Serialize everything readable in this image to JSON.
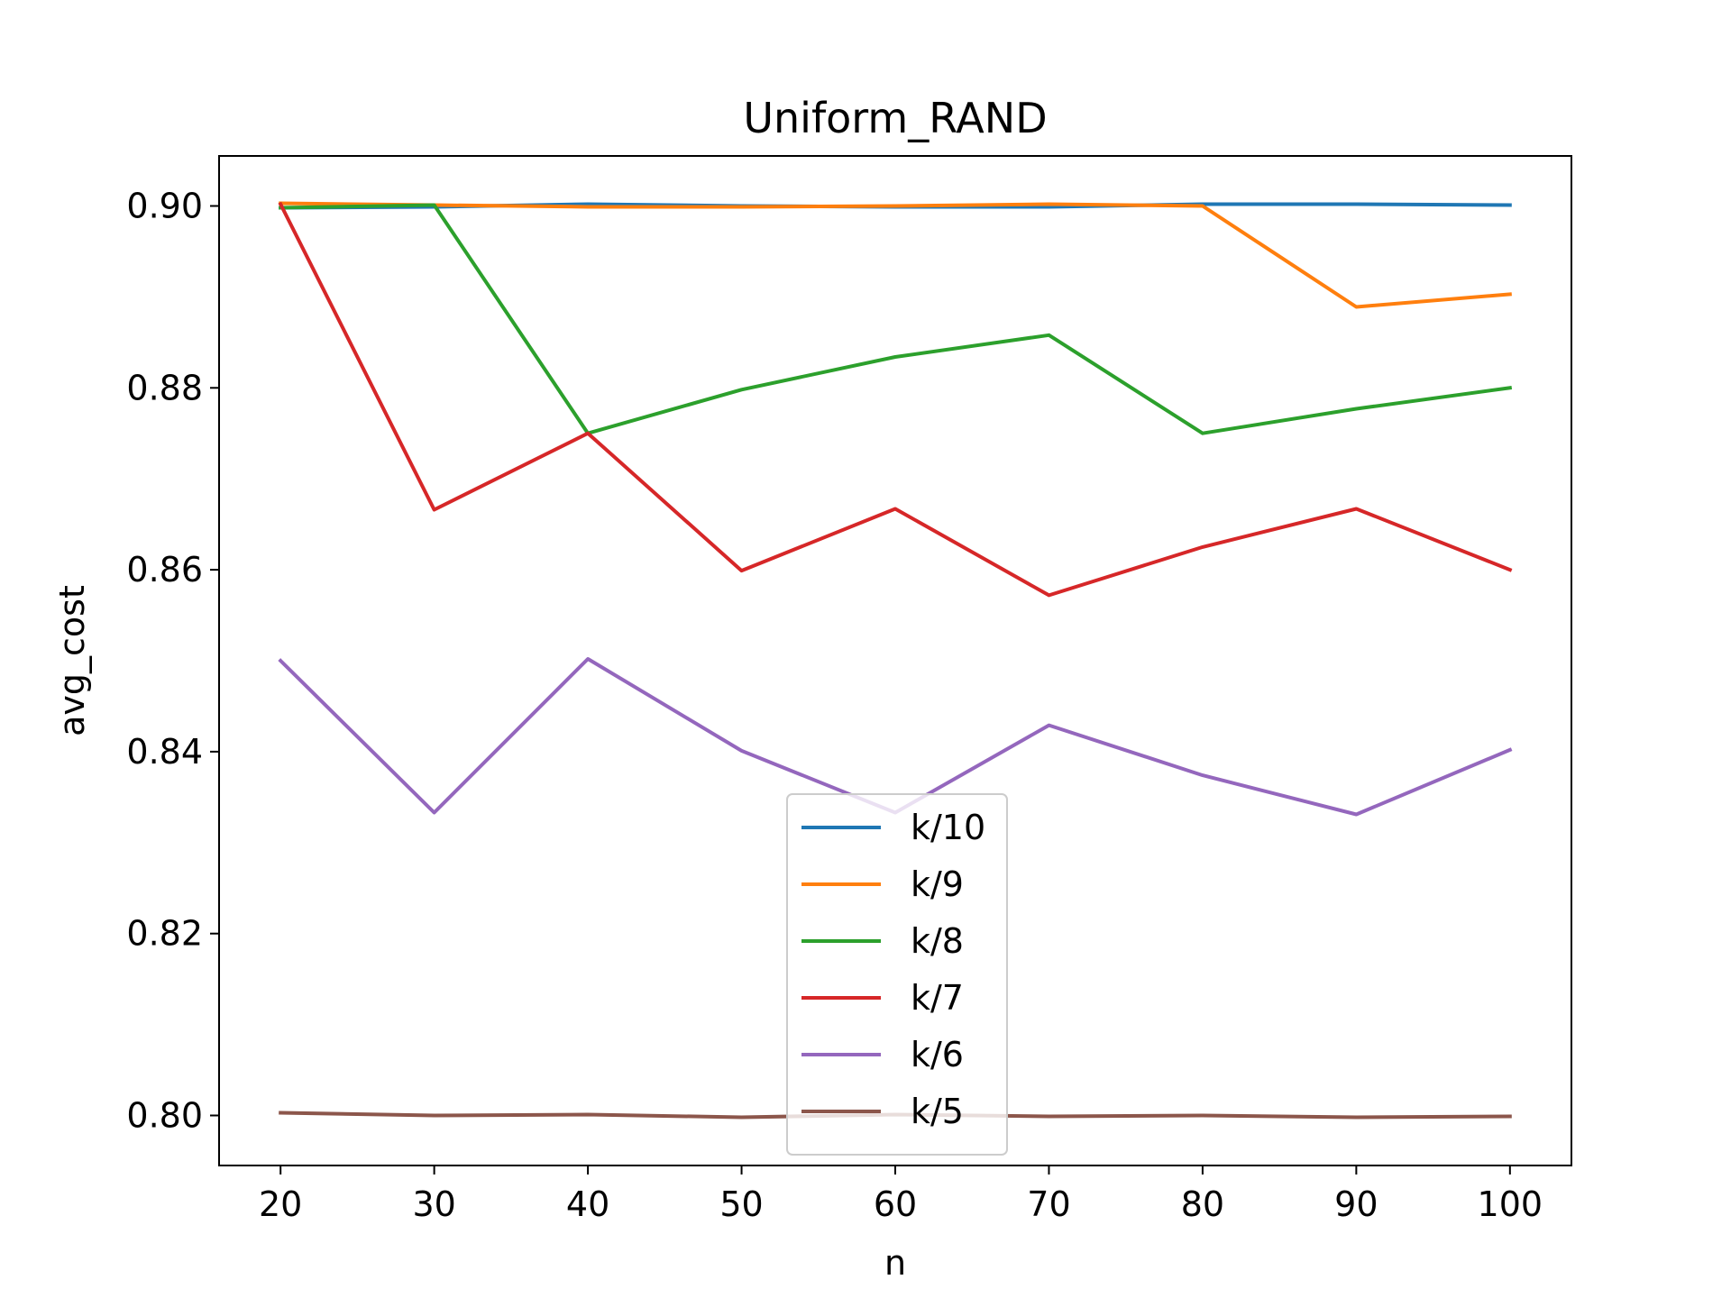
{
  "chart_data": {
    "type": "line",
    "title": "Uniform_RAND",
    "xlabel": "n",
    "ylabel": "avg_cost",
    "x": [
      20,
      30,
      40,
      50,
      60,
      70,
      80,
      90,
      100
    ],
    "xlim": [
      16,
      104
    ],
    "ylim": [
      0.7945,
      0.9055
    ],
    "xticks": [
      20,
      30,
      40,
      50,
      60,
      70,
      80,
      90,
      100
    ],
    "yticks": [
      0.8,
      0.82,
      0.84,
      0.86,
      0.88,
      0.9
    ],
    "ytick_labels": [
      "0.80",
      "0.82",
      "0.84",
      "0.86",
      "0.88",
      "0.90"
    ],
    "grid": false,
    "legend_position": "lower-center",
    "series": [
      {
        "name": "k/10",
        "color": "#1f77b4",
        "values": [
          0.8998,
          0.8999,
          0.9002,
          0.9,
          0.8999,
          0.8999,
          0.9002,
          0.9002,
          0.9001
        ]
      },
      {
        "name": "k/9",
        "color": "#ff7f0e",
        "values": [
          0.9003,
          0.9001,
          0.8999,
          0.8999,
          0.9,
          0.9002,
          0.9,
          0.8889,
          0.8903
        ]
      },
      {
        "name": "k/8",
        "color": "#2ca02c",
        "values": [
          0.8998,
          0.9001,
          0.875,
          0.8798,
          0.8834,
          0.8858,
          0.875,
          0.8777,
          0.88
        ]
      },
      {
        "name": "k/7",
        "color": "#d62728",
        "values": [
          0.9002,
          0.8666,
          0.875,
          0.8599,
          0.8667,
          0.8572,
          0.8625,
          0.8667,
          0.86
        ]
      },
      {
        "name": "k/6",
        "color": "#9467bd",
        "values": [
          0.85,
          0.8333,
          0.8502,
          0.8401,
          0.8333,
          0.8429,
          0.8374,
          0.8331,
          0.8402
        ]
      },
      {
        "name": "k/5",
        "color": "#8c564b",
        "values": [
          0.8003,
          0.8,
          0.8001,
          0.7998,
          0.8001,
          0.7999,
          0.8,
          0.7998,
          0.7999
        ]
      }
    ]
  }
}
